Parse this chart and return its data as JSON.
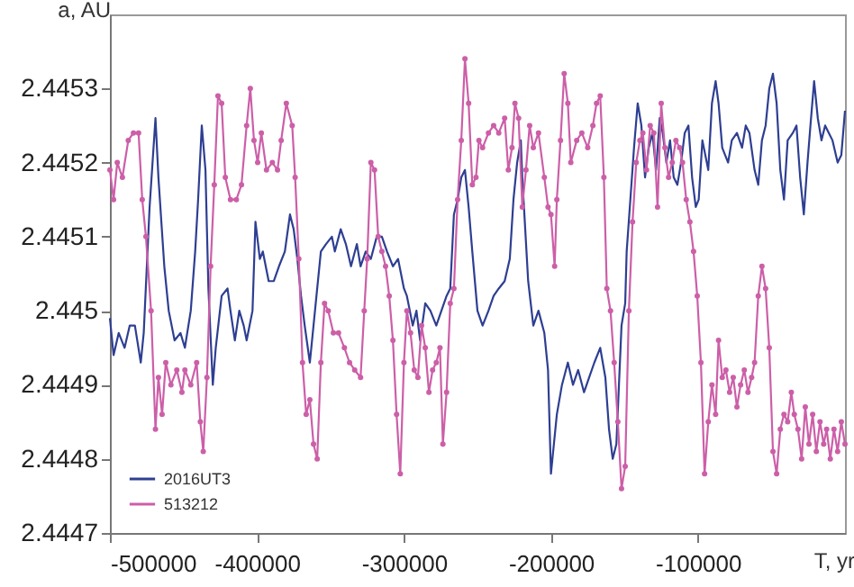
{
  "chart_data": {
    "type": "line",
    "xlabel": "T, yr",
    "ylabel": "a, AU",
    "xlim": [
      -500000,
      0
    ],
    "xticks": [
      -500000,
      -400000,
      -300000,
      -200000,
      -100000
    ],
    "ylim": [
      2.4447,
      2.4454
    ],
    "yticks": [
      2.4447,
      2.4448,
      2.4449,
      2.445,
      2.4451,
      2.4452,
      2.4453
    ],
    "grid": false,
    "legend": "bottom left",
    "series": [
      {
        "name": "2016UT3",
        "color": "#2e3f92",
        "marker": "none",
        "x": [
          -500000,
          -497500,
          -494000,
          -490000,
          -486500,
          -483000,
          -479000,
          -477000,
          -473000,
          -469000,
          -467000,
          -463000,
          -460000,
          -456000,
          -452000,
          -449000,
          -445000,
          -442000,
          -440000,
          -437500,
          -435000,
          -433000,
          -430000,
          -428000,
          -424000,
          -420000,
          -418000,
          -415000,
          -412000,
          -409000,
          -407000,
          -403000,
          -401000,
          -398000,
          -396000,
          -392000,
          -388500,
          -385000,
          -381000,
          -377500,
          -375000,
          -372500,
          -370000,
          -367500,
          -364000,
          -360000,
          -356500,
          -353000,
          -349000,
          -347000,
          -343000,
          -339500,
          -336000,
          -332000,
          -329500,
          -326000,
          -322500,
          -318500,
          -315000,
          -311500,
          -307500,
          -304000,
          -300000,
          -298000,
          -294000,
          -291500,
          -289000,
          -285500,
          -282000,
          -278000,
          -274500,
          -271000,
          -268500,
          -266000,
          -263500,
          -261000,
          -258500,
          -256000,
          -253500,
          -250000,
          -246500,
          -242500,
          -239000,
          -235500,
          -231500,
          -228000,
          -225500,
          -223000,
          -220500,
          -219500,
          -215500,
          -212000,
          -208500,
          -204500,
          -202000,
          -200000,
          -196000,
          -192500,
          -188500,
          -185000,
          -181500,
          -177500,
          -174000,
          -170500,
          -166500,
          -163000,
          -160500,
          -158000,
          -155500,
          -152000,
          -149500,
          -148500,
          -146000,
          -143500,
          -141000,
          -138500,
          -136000,
          -133500,
          -131000,
          -128500,
          -126000,
          -124000,
          -121500,
          -119000,
          -116500,
          -114000,
          -111500,
          -109000,
          -106500,
          -104000,
          -101500,
          -99500,
          -97000,
          -93000,
          -90500,
          -88000,
          -86000,
          -83500,
          -79500,
          -77000,
          -73500,
          -70000,
          -67500,
          -65000,
          -61500,
          -59000,
          -56500,
          -54000,
          -51500,
          -49000,
          -46500,
          -44000,
          -41500,
          -39000,
          -35500,
          -33000,
          -30500,
          -28000,
          -25500,
          -23500,
          -21000,
          -18500,
          -16000,
          -13500,
          -11000,
          -8500,
          -5000,
          -2500,
          0
        ],
        "values": [
          2.44499,
          2.44494,
          2.44497,
          2.44495,
          2.44498,
          2.44498,
          2.44493,
          2.44497,
          2.44514,
          2.44526,
          2.44518,
          2.44506,
          2.445,
          2.44496,
          2.44497,
          2.44495,
          2.445,
          2.44508,
          2.44515,
          2.44525,
          2.44519,
          2.44503,
          2.4449,
          2.44495,
          2.44502,
          2.44503,
          2.445,
          2.44496,
          2.445,
          2.44498,
          2.44496,
          2.445,
          2.44512,
          2.44507,
          2.44508,
          2.44504,
          2.44504,
          2.44506,
          2.44508,
          2.44513,
          2.44511,
          2.44507,
          2.44502,
          2.44498,
          2.44493,
          2.44501,
          2.44508,
          2.44509,
          2.4451,
          2.44508,
          2.44511,
          2.44509,
          2.44506,
          2.44509,
          2.44506,
          2.44508,
          2.44507,
          2.4451,
          2.4451,
          2.44508,
          2.44506,
          2.44507,
          2.44503,
          2.44502,
          2.44498,
          2.445,
          2.44496,
          2.44501,
          2.445,
          2.44498,
          2.445,
          2.44502,
          2.44503,
          2.44513,
          2.44515,
          2.44518,
          2.44519,
          2.44514,
          2.44508,
          2.445,
          2.44498,
          2.445,
          2.44502,
          2.44503,
          2.44504,
          2.44507,
          2.44515,
          2.4452,
          2.44523,
          2.44518,
          2.44504,
          2.44498,
          2.445,
          2.44497,
          2.44492,
          2.44478,
          2.44486,
          2.4449,
          2.44493,
          2.4449,
          2.44492,
          2.44489,
          2.44491,
          2.44493,
          2.44495,
          2.44491,
          2.44484,
          2.4448,
          2.44482,
          2.44498,
          2.44501,
          2.44508,
          2.44515,
          2.44522,
          2.44528,
          2.44525,
          2.44518,
          2.44522,
          2.44524,
          2.44519,
          2.44526,
          2.44524,
          2.4452,
          2.44523,
          2.44518,
          2.44517,
          2.4452,
          2.44524,
          2.44525,
          2.44518,
          2.44514,
          2.44515,
          2.44523,
          2.44519,
          2.44528,
          2.44531,
          2.44528,
          2.44522,
          2.4452,
          2.44523,
          2.44524,
          2.44522,
          2.44525,
          2.44524,
          2.44519,
          2.44517,
          2.44523,
          2.44525,
          2.4453,
          2.44532,
          2.44528,
          2.44519,
          2.44515,
          2.44523,
          2.44524,
          2.44525,
          2.44518,
          2.44513,
          2.4452,
          2.44525,
          2.44531,
          2.44526,
          2.44523,
          2.44525,
          2.44524,
          2.44523,
          2.4452,
          2.44521,
          2.44527
        ]
      },
      {
        "name": "513212",
        "color": "#cc5fa8",
        "marker": "circle",
        "x": [
          -500000,
          -497500,
          -495000,
          -491500,
          -487500,
          -484000,
          -480500,
          -478000,
          -475500,
          -472000,
          -469000,
          -467000,
          -464500,
          -462000,
          -458500,
          -454500,
          -451000,
          -449000,
          -445000,
          -441000,
          -438500,
          -436500,
          -434000,
          -431500,
          -429000,
          -426500,
          -424000,
          -421500,
          -418000,
          -414000,
          -410500,
          -407000,
          -404500,
          -402000,
          -399500,
          -397000,
          -393500,
          -389500,
          -386000,
          -383500,
          -380000,
          -376000,
          -374000,
          -371500,
          -369000,
          -366500,
          -364000,
          -361500,
          -359000,
          -356500,
          -354000,
          -351500,
          -348000,
          -344500,
          -340500,
          -337000,
          -333500,
          -329500,
          -327000,
          -325000,
          -322500,
          -320000,
          -317500,
          -315000,
          -312500,
          -310000,
          -307500,
          -305000,
          -302500,
          -300000,
          -298000,
          -295500,
          -293000,
          -290500,
          -288000,
          -285500,
          -283000,
          -280500,
          -278000,
          -275500,
          -273500,
          -271000,
          -268500,
          -266000,
          -263500,
          -261000,
          -258500,
          -256000,
          -253500,
          -251000,
          -249000,
          -246500,
          -242500,
          -239000,
          -235500,
          -231500,
          -229000,
          -226500,
          -224500,
          -222000,
          -219500,
          -217000,
          -214500,
          -212000,
          -208500,
          -204500,
          -202000,
          -200000,
          -197500,
          -196000,
          -193500,
          -191000,
          -188500,
          -186500,
          -182500,
          -179000,
          -175000,
          -171500,
          -169000,
          -166500,
          -164000,
          -162000,
          -159500,
          -157000,
          -154500,
          -152000,
          -149500,
          -147000,
          -144500,
          -142000,
          -139500,
          -137500,
          -135000,
          -132500,
          -130000,
          -127500,
          -125000,
          -122500,
          -120000,
          -117500,
          -115000,
          -112500,
          -110500,
          -108000,
          -105500,
          -103000,
          -100500,
          -98000,
          -95500,
          -93000,
          -90500,
          -88000,
          -86000,
          -83500,
          -81000,
          -78500,
          -76000,
          -73500,
          -71000,
          -68500,
          -66000,
          -63500,
          -61500,
          -59000,
          -56500,
          -54000,
          -51500,
          -49000,
          -46500,
          -44000,
          -41500,
          -39000,
          -36500,
          -34500,
          -32000,
          -29500,
          -27000,
          -24500,
          -22000,
          -19500,
          -17000,
          -14500,
          -12500,
          -10000,
          -7500,
          -5000,
          -2500,
          0
        ],
        "values": [
          2.44519,
          2.44515,
          2.4452,
          2.44518,
          2.44523,
          2.44524,
          2.44524,
          2.44515,
          2.4451,
          2.445,
          2.44484,
          2.44491,
          2.44486,
          2.44493,
          2.4449,
          2.44492,
          2.44489,
          2.44492,
          2.4449,
          2.44493,
          2.44485,
          2.44481,
          2.44491,
          2.44506,
          2.44517,
          2.44529,
          2.44528,
          2.44518,
          2.44515,
          2.44515,
          2.44517,
          2.44525,
          2.4453,
          2.44523,
          2.4452,
          2.44524,
          2.44519,
          2.4452,
          2.44519,
          2.44523,
          2.44528,
          2.44525,
          2.44518,
          2.44507,
          2.44493,
          2.44486,
          2.44488,
          2.44482,
          2.4448,
          2.44493,
          2.44501,
          2.445,
          2.44497,
          2.44497,
          2.44495,
          2.44493,
          2.44492,
          2.44491,
          2.445,
          2.44507,
          2.4452,
          2.44519,
          2.4451,
          2.44508,
          2.44506,
          2.44502,
          2.44496,
          2.44486,
          2.44478,
          2.44493,
          2.445,
          2.44497,
          2.44492,
          2.44491,
          2.44498,
          2.44495,
          2.44489,
          2.44492,
          2.44493,
          2.44495,
          2.44482,
          2.44489,
          2.44501,
          2.44503,
          2.44515,
          2.44523,
          2.44534,
          2.44528,
          2.44517,
          2.44518,
          2.44523,
          2.44522,
          2.44524,
          2.44525,
          2.44524,
          2.44526,
          2.44519,
          2.44522,
          2.44528,
          2.44526,
          2.44514,
          2.44519,
          2.44525,
          2.44522,
          2.44524,
          2.44518,
          2.44514,
          2.44513,
          2.44506,
          2.44515,
          2.44523,
          2.44532,
          2.44528,
          2.4452,
          2.44523,
          2.44524,
          2.44522,
          2.44525,
          2.44528,
          2.44529,
          2.44518,
          2.44503,
          2.445,
          2.44493,
          2.44485,
          2.44476,
          2.44479,
          2.445,
          2.44512,
          2.4452,
          2.44523,
          2.44524,
          2.44519,
          2.44525,
          2.44524,
          2.44514,
          2.44528,
          2.44522,
          2.44518,
          2.4452,
          2.44523,
          2.44522,
          2.4452,
          2.44515,
          2.44512,
          2.44508,
          2.44502,
          2.44493,
          2.44478,
          2.44485,
          2.4449,
          2.44486,
          2.44496,
          2.44491,
          2.44492,
          2.44489,
          2.44491,
          2.44487,
          2.4449,
          2.44492,
          2.44489,
          2.44491,
          2.44493,
          2.44502,
          2.44506,
          2.44503,
          2.44495,
          2.44481,
          2.44478,
          2.44484,
          2.44486,
          2.44485,
          2.44489,
          2.44486,
          2.44484,
          2.4448,
          2.44487,
          2.44482,
          2.44486,
          2.44481,
          2.44485,
          2.44482,
          2.44484,
          2.4448,
          2.44484,
          2.44481,
          2.44485,
          2.44482
        ]
      }
    ]
  }
}
